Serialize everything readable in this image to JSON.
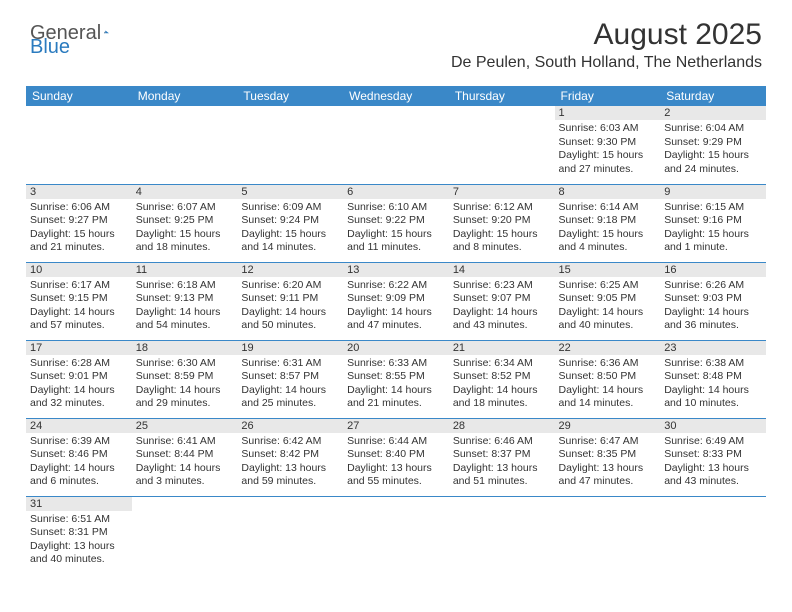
{
  "logo": {
    "text1": "General",
    "text2": "Blue"
  },
  "title": "August 2025",
  "location": "De Peulen, South Holland, The Netherlands",
  "colors": {
    "header_bg": "#3a88c8",
    "header_fg": "#ffffff",
    "daynum_bg": "#e8e8e8",
    "border": "#3a88c8",
    "logo_blue": "#2b7bbf"
  },
  "weekdays": [
    "Sunday",
    "Monday",
    "Tuesday",
    "Wednesday",
    "Thursday",
    "Friday",
    "Saturday"
  ],
  "weeks": [
    [
      null,
      null,
      null,
      null,
      null,
      {
        "n": "1",
        "sr": "6:03 AM",
        "ss": "9:30 PM",
        "dl": "15 hours and 27 minutes."
      },
      {
        "n": "2",
        "sr": "6:04 AM",
        "ss": "9:29 PM",
        "dl": "15 hours and 24 minutes."
      }
    ],
    [
      {
        "n": "3",
        "sr": "6:06 AM",
        "ss": "9:27 PM",
        "dl": "15 hours and 21 minutes."
      },
      {
        "n": "4",
        "sr": "6:07 AM",
        "ss": "9:25 PM",
        "dl": "15 hours and 18 minutes."
      },
      {
        "n": "5",
        "sr": "6:09 AM",
        "ss": "9:24 PM",
        "dl": "15 hours and 14 minutes."
      },
      {
        "n": "6",
        "sr": "6:10 AM",
        "ss": "9:22 PM",
        "dl": "15 hours and 11 minutes."
      },
      {
        "n": "7",
        "sr": "6:12 AM",
        "ss": "9:20 PM",
        "dl": "15 hours and 8 minutes."
      },
      {
        "n": "8",
        "sr": "6:14 AM",
        "ss": "9:18 PM",
        "dl": "15 hours and 4 minutes."
      },
      {
        "n": "9",
        "sr": "6:15 AM",
        "ss": "9:16 PM",
        "dl": "15 hours and 1 minute."
      }
    ],
    [
      {
        "n": "10",
        "sr": "6:17 AM",
        "ss": "9:15 PM",
        "dl": "14 hours and 57 minutes."
      },
      {
        "n": "11",
        "sr": "6:18 AM",
        "ss": "9:13 PM",
        "dl": "14 hours and 54 minutes."
      },
      {
        "n": "12",
        "sr": "6:20 AM",
        "ss": "9:11 PM",
        "dl": "14 hours and 50 minutes."
      },
      {
        "n": "13",
        "sr": "6:22 AM",
        "ss": "9:09 PM",
        "dl": "14 hours and 47 minutes."
      },
      {
        "n": "14",
        "sr": "6:23 AM",
        "ss": "9:07 PM",
        "dl": "14 hours and 43 minutes."
      },
      {
        "n": "15",
        "sr": "6:25 AM",
        "ss": "9:05 PM",
        "dl": "14 hours and 40 minutes."
      },
      {
        "n": "16",
        "sr": "6:26 AM",
        "ss": "9:03 PM",
        "dl": "14 hours and 36 minutes."
      }
    ],
    [
      {
        "n": "17",
        "sr": "6:28 AM",
        "ss": "9:01 PM",
        "dl": "14 hours and 32 minutes."
      },
      {
        "n": "18",
        "sr": "6:30 AM",
        "ss": "8:59 PM",
        "dl": "14 hours and 29 minutes."
      },
      {
        "n": "19",
        "sr": "6:31 AM",
        "ss": "8:57 PM",
        "dl": "14 hours and 25 minutes."
      },
      {
        "n": "20",
        "sr": "6:33 AM",
        "ss": "8:55 PM",
        "dl": "14 hours and 21 minutes."
      },
      {
        "n": "21",
        "sr": "6:34 AM",
        "ss": "8:52 PM",
        "dl": "14 hours and 18 minutes."
      },
      {
        "n": "22",
        "sr": "6:36 AM",
        "ss": "8:50 PM",
        "dl": "14 hours and 14 minutes."
      },
      {
        "n": "23",
        "sr": "6:38 AM",
        "ss": "8:48 PM",
        "dl": "14 hours and 10 minutes."
      }
    ],
    [
      {
        "n": "24",
        "sr": "6:39 AM",
        "ss": "8:46 PM",
        "dl": "14 hours and 6 minutes."
      },
      {
        "n": "25",
        "sr": "6:41 AM",
        "ss": "8:44 PM",
        "dl": "14 hours and 3 minutes."
      },
      {
        "n": "26",
        "sr": "6:42 AM",
        "ss": "8:42 PM",
        "dl": "13 hours and 59 minutes."
      },
      {
        "n": "27",
        "sr": "6:44 AM",
        "ss": "8:40 PM",
        "dl": "13 hours and 55 minutes."
      },
      {
        "n": "28",
        "sr": "6:46 AM",
        "ss": "8:37 PM",
        "dl": "13 hours and 51 minutes."
      },
      {
        "n": "29",
        "sr": "6:47 AM",
        "ss": "8:35 PM",
        "dl": "13 hours and 47 minutes."
      },
      {
        "n": "30",
        "sr": "6:49 AM",
        "ss": "8:33 PM",
        "dl": "13 hours and 43 minutes."
      }
    ],
    [
      {
        "n": "31",
        "sr": "6:51 AM",
        "ss": "8:31 PM",
        "dl": "13 hours and 40 minutes."
      },
      null,
      null,
      null,
      null,
      null,
      null
    ]
  ],
  "labels": {
    "sunrise": "Sunrise:",
    "sunset": "Sunset:",
    "daylight": "Daylight:"
  }
}
